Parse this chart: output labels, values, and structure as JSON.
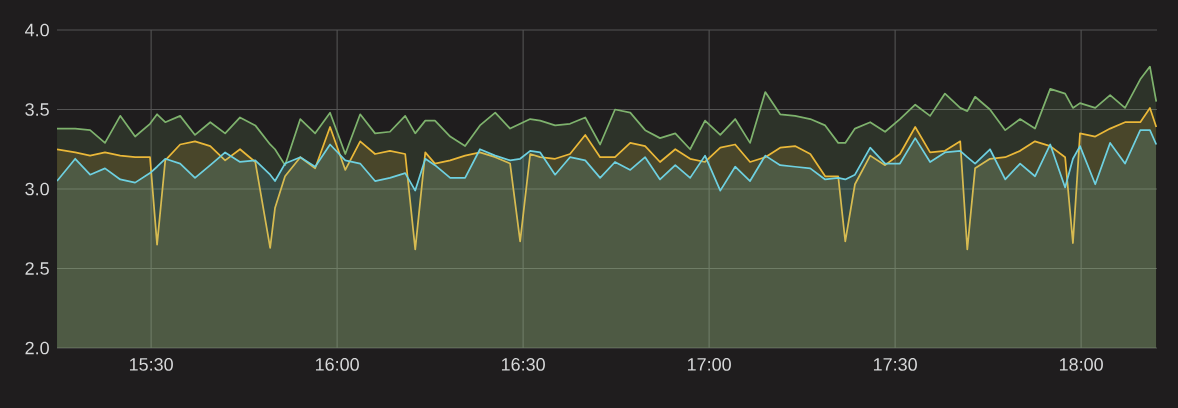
{
  "chart_data": {
    "type": "area",
    "x": [
      15.247,
      15.296,
      15.336,
      15.376,
      15.417,
      15.457,
      15.497,
      15.516,
      15.538,
      15.578,
      15.618,
      15.659,
      15.699,
      15.739,
      15.78,
      15.82,
      15.833,
      15.86,
      15.901,
      15.941,
      15.981,
      16.022,
      16.062,
      16.102,
      16.142,
      16.183,
      16.21,
      16.237,
      16.263,
      16.304,
      16.344,
      16.384,
      16.425,
      16.465,
      16.492,
      16.519,
      16.546,
      16.586,
      16.626,
      16.667,
      16.707,
      16.747,
      16.788,
      16.828,
      16.868,
      16.909,
      16.949,
      16.989,
      17.03,
      17.07,
      17.11,
      17.151,
      17.191,
      17.231,
      17.272,
      17.312,
      17.347,
      17.366,
      17.392,
      17.433,
      17.473,
      17.513,
      17.554,
      17.594,
      17.634,
      17.675,
      17.694,
      17.715,
      17.755,
      17.796,
      17.836,
      17.876,
      17.917,
      17.957,
      17.978,
      17.997,
      18.038,
      18.078,
      18.118,
      18.159,
      18.185,
      18.202
    ],
    "series": [
      {
        "color": "#7eb26d",
        "values": [
          3.38,
          3.38,
          3.37,
          3.29,
          3.46,
          3.33,
          3.41,
          3.47,
          3.42,
          3.46,
          3.34,
          3.42,
          3.35,
          3.45,
          3.4,
          3.28,
          3.25,
          3.15,
          3.44,
          3.35,
          3.48,
          3.22,
          3.47,
          3.35,
          3.36,
          3.46,
          3.35,
          3.43,
          3.43,
          3.33,
          3.27,
          3.4,
          3.48,
          3.38,
          3.41,
          3.44,
          3.43,
          3.4,
          3.41,
          3.45,
          3.28,
          3.5,
          3.48,
          3.37,
          3.32,
          3.35,
          3.25,
          3.43,
          3.34,
          3.44,
          3.29,
          3.61,
          3.47,
          3.46,
          3.44,
          3.4,
          3.29,
          3.29,
          3.38,
          3.42,
          3.36,
          3.44,
          3.53,
          3.46,
          3.6,
          3.51,
          3.49,
          3.58,
          3.5,
          3.37,
          3.44,
          3.38,
          3.63,
          3.6,
          3.51,
          3.54,
          3.51,
          3.59,
          3.51,
          3.69,
          3.77,
          3.55
        ]
      },
      {
        "color": "#eab839",
        "values": [
          3.25,
          3.23,
          3.21,
          3.23,
          3.21,
          3.2,
          3.2,
          2.65,
          3.18,
          3.28,
          3.3,
          3.27,
          3.18,
          3.25,
          3.17,
          2.63,
          2.88,
          3.08,
          3.2,
          3.13,
          3.39,
          3.12,
          3.3,
          3.22,
          3.24,
          3.22,
          2.62,
          3.23,
          3.16,
          3.18,
          3.21,
          3.23,
          3.2,
          3.16,
          2.67,
          3.22,
          3.2,
          3.19,
          3.22,
          3.34,
          3.2,
          3.2,
          3.29,
          3.27,
          3.17,
          3.25,
          3.19,
          3.17,
          3.26,
          3.28,
          3.17,
          3.2,
          3.26,
          3.27,
          3.22,
          3.08,
          3.08,
          2.67,
          3.03,
          3.21,
          3.15,
          3.22,
          3.39,
          3.23,
          3.24,
          3.3,
          2.62,
          3.13,
          3.19,
          3.2,
          3.24,
          3.3,
          3.27,
          3.2,
          2.66,
          3.35,
          3.33,
          3.38,
          3.42,
          3.42,
          3.51,
          3.39
        ]
      },
      {
        "color": "#6ed0e0",
        "values": [
          3.05,
          3.19,
          3.09,
          3.13,
          3.06,
          3.04,
          3.1,
          3.14,
          3.19,
          3.16,
          3.07,
          3.15,
          3.23,
          3.17,
          3.18,
          3.09,
          3.05,
          3.16,
          3.2,
          3.14,
          3.28,
          3.18,
          3.16,
          3.05,
          3.07,
          3.1,
          2.99,
          3.19,
          3.15,
          3.07,
          3.07,
          3.25,
          3.21,
          3.18,
          3.19,
          3.24,
          3.23,
          3.09,
          3.2,
          3.18,
          3.07,
          3.17,
          3.12,
          3.2,
          3.06,
          3.15,
          3.07,
          3.21,
          2.99,
          3.14,
          3.05,
          3.21,
          3.15,
          3.14,
          3.13,
          3.06,
          3.07,
          3.06,
          3.09,
          3.26,
          3.16,
          3.16,
          3.32,
          3.17,
          3.23,
          3.24,
          3.2,
          3.16,
          3.25,
          3.06,
          3.16,
          3.08,
          3.28,
          3.01,
          3.19,
          3.27,
          3.03,
          3.29,
          3.16,
          3.37,
          3.37,
          3.28
        ]
      }
    ],
    "xlim": [
      15.247,
      18.204
    ],
    "ylim": [
      2,
      4
    ],
    "xticks": [
      {
        "value": 15.5,
        "label": "15:30"
      },
      {
        "value": 16,
        "label": "16:00"
      },
      {
        "value": 16.5,
        "label": "16:30"
      },
      {
        "value": 17,
        "label": "17:00"
      },
      {
        "value": 17.5,
        "label": "17:30"
      },
      {
        "value": 18,
        "label": "18:00"
      }
    ],
    "yticks": [
      {
        "value": 2,
        "label": "2.0"
      },
      {
        "value": 2.5,
        "label": "2.5"
      },
      {
        "value": 3,
        "label": "3.0"
      },
      {
        "value": 3.5,
        "label": "3.5"
      },
      {
        "value": 4,
        "label": "4.0"
      }
    ],
    "grid": true
  }
}
